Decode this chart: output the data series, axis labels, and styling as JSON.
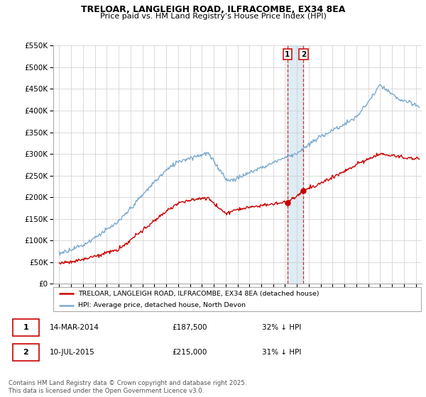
{
  "title1": "TRELOAR, LANGLEIGH ROAD, ILFRACOMBE, EX34 8EA",
  "title2": "Price paid vs. HM Land Registry's House Price Index (HPI)",
  "legend1": "TRELOAR, LANGLEIGH ROAD, ILFRACOMBE, EX34 8EA (detached house)",
  "legend2": "HPI: Average price, detached house, North Devon",
  "footer": "Contains HM Land Registry data © Crown copyright and database right 2025.\nThis data is licensed under the Open Government Licence v3.0.",
  "transaction1_num": "1",
  "transaction1_date": "14-MAR-2014",
  "transaction1_price": "£187,500",
  "transaction1_hpi": "32% ↓ HPI",
  "transaction2_num": "2",
  "transaction2_date": "10-JUL-2015",
  "transaction2_price": "£215,000",
  "transaction2_hpi": "31% ↓ HPI",
  "vline1_x": 2014.2,
  "vline2_x": 2015.55,
  "marker1_x": 2014.2,
  "marker1_y": 187500,
  "marker2_x": 2015.55,
  "marker2_y": 215000,
  "ylim": [
    0,
    550000
  ],
  "xlim_start": 1994.5,
  "xlim_end": 2025.5,
  "red_color": "#cc0000",
  "blue_color": "#7aaad0",
  "vspan_color": "#d0e4f0",
  "background_color": "#ffffff",
  "grid_color": "#cccccc"
}
